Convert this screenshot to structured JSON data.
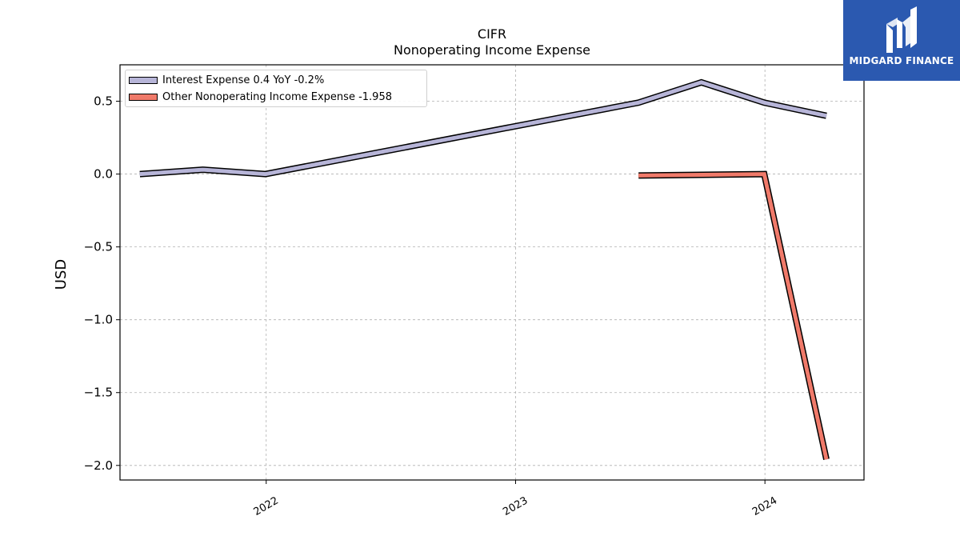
{
  "brand": {
    "name": "MIDGARD FINANCE",
    "logo_icon": "midgard-logo-icon",
    "color": "#2b59b0"
  },
  "chart_data": {
    "type": "line",
    "title": "CIFR",
    "subtitle": "Nonoperating Income Expense",
    "ylabel": "USD",
    "xlabel": "",
    "ylim": [
      -2.1,
      0.75
    ],
    "xlim": [
      "2021-06-01",
      "2024-05-25"
    ],
    "yticks": [
      0.5,
      0.0,
      -0.5,
      -1.0,
      -1.5,
      -2.0
    ],
    "ytick_labels": [
      "0.5",
      "0.0",
      "−0.5",
      "−1.0",
      "−1.5",
      "−2.0"
    ],
    "xticks": [
      "2022-01-01",
      "2023-01-01",
      "2024-01-01"
    ],
    "xtick_labels": [
      "2022",
      "2023",
      "2024"
    ],
    "grid": true,
    "legend_position": "top-left",
    "series": [
      {
        "name": "Interest Expense",
        "legend_label": "Interest Expense  0.4 YoY -0.2%",
        "color": "#b7b5d8",
        "x": [
          "2021-06-30",
          "2021-09-30",
          "2021-12-31",
          "2023-06-30",
          "2023-09-30",
          "2023-12-31",
          "2024-03-31"
        ],
        "values": [
          0.0,
          0.03,
          0.0,
          0.49,
          0.63,
          0.49,
          0.4
        ]
      },
      {
        "name": "Other Nonoperating Income Expense",
        "legend_label": "Other Nonoperating Income Expense  -1.958",
        "color": "#f07a6a",
        "x": [
          "2023-06-30",
          "2023-12-31",
          "2024-03-31"
        ],
        "values": [
          -0.01,
          0.0,
          -1.958
        ]
      }
    ]
  }
}
